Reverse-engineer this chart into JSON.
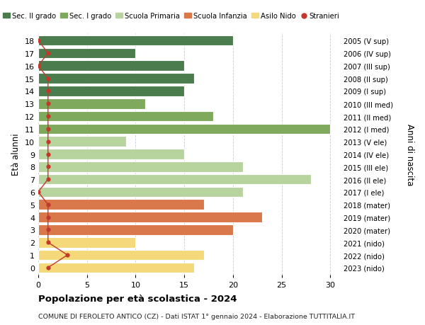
{
  "ages": [
    18,
    17,
    16,
    15,
    14,
    13,
    12,
    11,
    10,
    9,
    8,
    7,
    6,
    5,
    4,
    3,
    2,
    1,
    0
  ],
  "right_labels": [
    "2005 (V sup)",
    "2006 (IV sup)",
    "2007 (III sup)",
    "2008 (II sup)",
    "2009 (I sup)",
    "2010 (III med)",
    "2011 (II med)",
    "2012 (I med)",
    "2013 (V ele)",
    "2014 (IV ele)",
    "2015 (III ele)",
    "2016 (II ele)",
    "2017 (I ele)",
    "2018 (mater)",
    "2019 (mater)",
    "2020 (mater)",
    "2021 (nido)",
    "2022 (nido)",
    "2023 (nido)"
  ],
  "bar_values": [
    20,
    10,
    15,
    16,
    15,
    11,
    18,
    30,
    9,
    15,
    21,
    28,
    21,
    17,
    23,
    20,
    10,
    17,
    16
  ],
  "bar_colors": [
    "#4a7c4e",
    "#4a7c4e",
    "#4a7c4e",
    "#4a7c4e",
    "#4a7c4e",
    "#7faa5e",
    "#7faa5e",
    "#7faa5e",
    "#b8d49e",
    "#b8d49e",
    "#b8d49e",
    "#b8d49e",
    "#b8d49e",
    "#d9784a",
    "#d9784a",
    "#d9784a",
    "#f5d87a",
    "#f5d87a",
    "#f5d87a"
  ],
  "stranieri_values": [
    0,
    1,
    0,
    1,
    1,
    1,
    1,
    1,
    1,
    1,
    1,
    1,
    0,
    1,
    1,
    1,
    1,
    3,
    1
  ],
  "stranieri_color": "#c0392b",
  "title": "Popolazione per età scolastica - 2024",
  "subtitle": "COMUNE DI FEROLETO ANTICO (CZ) - Dati ISTAT 1° gennaio 2024 - Elaborazione TUTTITALIA.IT",
  "ylabel_left": "Età alunni",
  "ylabel_right": "Anni di nascita",
  "xlim": [
    0,
    31
  ],
  "xticks": [
    0,
    5,
    10,
    15,
    20,
    25,
    30
  ],
  "bg_color": "#ffffff",
  "bar_height": 0.82,
  "legend_items": [
    {
      "label": "Sec. II grado",
      "color": "#4a7c4e"
    },
    {
      "label": "Sec. I grado",
      "color": "#7faa5e"
    },
    {
      "label": "Scuola Primaria",
      "color": "#b8d49e"
    },
    {
      "label": "Scuola Infanzia",
      "color": "#d9784a"
    },
    {
      "label": "Asilo Nido",
      "color": "#f5d87a"
    },
    {
      "label": "Stranieri",
      "color": "#c0392b"
    }
  ]
}
